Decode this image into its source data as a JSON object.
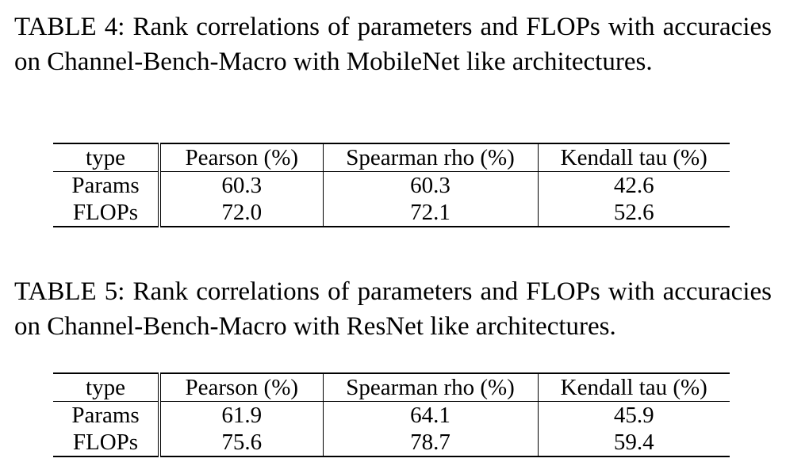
{
  "tables": [
    {
      "caption": "TABLE 4: Rank correlations of parameters and FLOPs with accuracies on Channel-Bench-Macro with MobileNet like archi­tectures.",
      "headers": [
        "type",
        "Pearson (%)",
        "Spearman rho (%)",
        "Kendall tau (%)"
      ],
      "rows": [
        [
          "Params",
          "60.3",
          "60.3",
          "42.6"
        ],
        [
          "FLOPs",
          "72.0",
          "72.1",
          "52.6"
        ]
      ]
    },
    {
      "caption": "TABLE 5: Rank correlations of parameters and FLOPs with accu­racies on Channel-Bench-Macro with ResNet like architectures.",
      "headers": [
        "type",
        "Pearson (%)",
        "Spearman rho (%)",
        "Kendall tau (%)"
      ],
      "rows": [
        [
          "Params",
          "61.9",
          "64.1",
          "45.9"
        ],
        [
          "FLOPs",
          "75.6",
          "78.7",
          "59.4"
        ]
      ]
    }
  ]
}
